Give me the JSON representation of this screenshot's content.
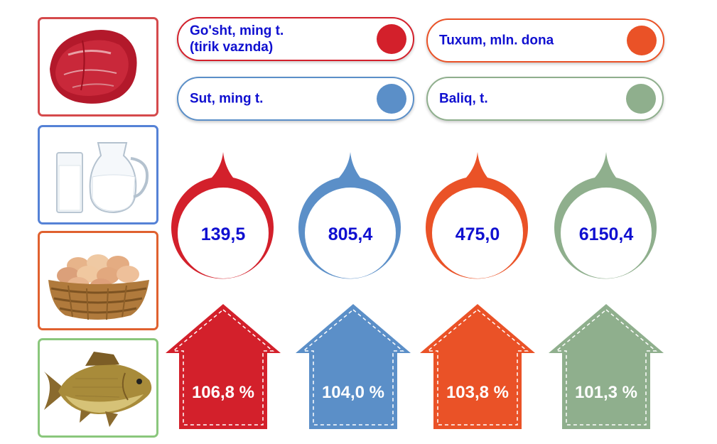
{
  "colors": {
    "meat": "#d3202b",
    "milk": "#5b8fc8",
    "eggs": "#ea5227",
    "fish": "#8faf8d",
    "text": "#1010d0",
    "white": "#ffffff"
  },
  "products": [
    {
      "id": "meat",
      "legend_lines": [
        "Go'sht, ming t.",
        "(tirik vaznda)"
      ],
      "volume": "139,5",
      "growth": "106,8 %",
      "icon": "meat-icon"
    },
    {
      "id": "milk",
      "legend_lines": [
        "Sut, ming t."
      ],
      "volume": "805,4",
      "growth": "104,0 %",
      "icon": "milk-icon"
    },
    {
      "id": "eggs",
      "legend_lines": [
        "Tuxum, mln. dona"
      ],
      "volume": "475,0",
      "growth": "103,8 %",
      "icon": "eggs-icon"
    },
    {
      "id": "fish",
      "legend_lines": [
        "Baliq, t."
      ],
      "volume": "6150,4",
      "growth": "101,3 %",
      "icon": "fish-icon"
    }
  ]
}
